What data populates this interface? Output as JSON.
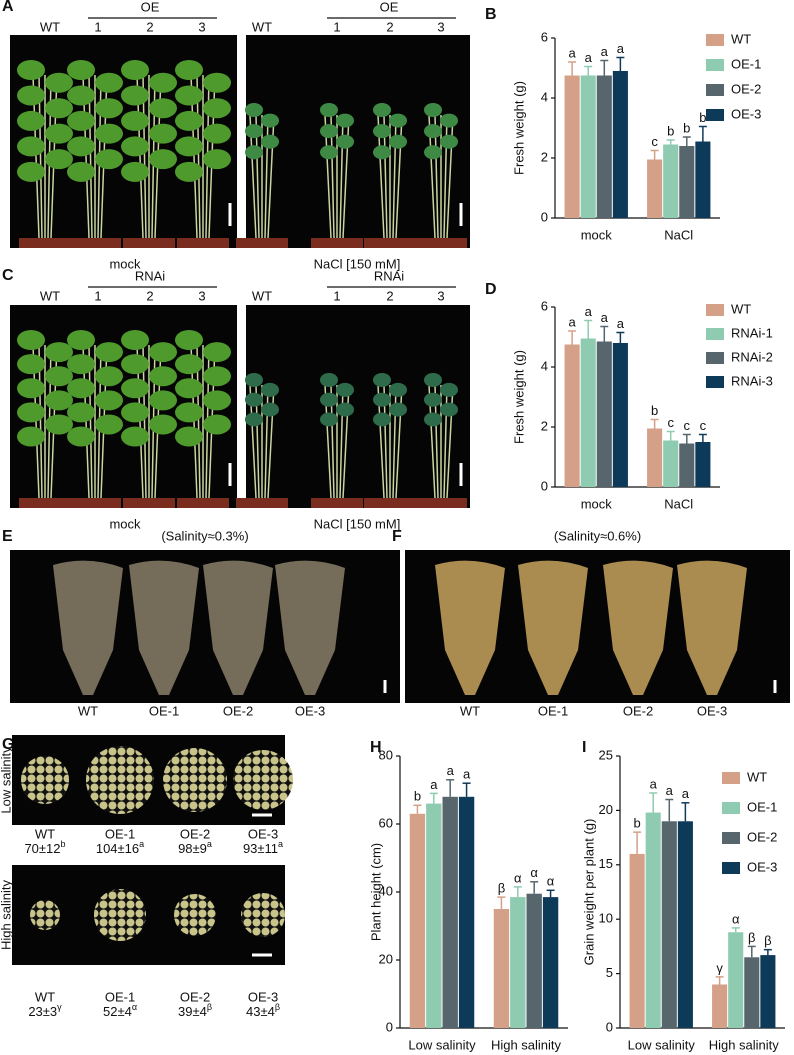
{
  "panels": {
    "A": {
      "letter": "A",
      "mock": {
        "wt": "WT",
        "group": "OE",
        "lines": [
          "1",
          "2",
          "3"
        ],
        "caption": "mock"
      },
      "salt": {
        "wt": "WT",
        "group": "OE",
        "lines": [
          "1",
          "2",
          "3"
        ],
        "caption": "NaCl [150 mM]"
      }
    },
    "C": {
      "letter": "C",
      "mock": {
        "wt": "WT",
        "group": "RNAi",
        "lines": [
          "1",
          "2",
          "3"
        ],
        "caption": "mock"
      },
      "salt": {
        "wt": "WT",
        "group": "RNAi",
        "lines": [
          "1",
          "2",
          "3"
        ],
        "caption": "NaCl [150 mM]"
      }
    },
    "E": {
      "letter": "E",
      "title": "(Salinity≈0.3%)",
      "labels": [
        "WT",
        "OE-1",
        "OE-2",
        "OE-3"
      ]
    },
    "F": {
      "letter": "F",
      "title": "(Salinity≈0.6%)",
      "labels": [
        "WT",
        "OE-1",
        "OE-2",
        "OE-3"
      ]
    },
    "G": {
      "letter": "G",
      "low": {
        "label": "Low salinity",
        "rows": [
          {
            "name": "WT",
            "count": "70±12",
            "letter": "b"
          },
          {
            "name": "OE-1",
            "count": "104±16",
            "letter": "a"
          },
          {
            "name": "OE-2",
            "count": "98±9",
            "letter": "a"
          },
          {
            "name": "OE-3",
            "count": "93±11",
            "letter": "a"
          }
        ]
      },
      "high": {
        "label": "High salinity",
        "rows": [
          {
            "name": "WT",
            "count": "23±3",
            "letter": "γ"
          },
          {
            "name": "OE-1",
            "count": "52±4",
            "letter": "α"
          },
          {
            "name": "OE-2",
            "count": "39±4",
            "letter": "β"
          },
          {
            "name": "OE-3",
            "count": "43±4",
            "letter": "β"
          }
        ]
      }
    }
  },
  "chart_data": [
    {
      "type": "bar",
      "panel": "B",
      "y_label": "Fresh weight (g)",
      "categories": [
        "mock",
        "NaCl"
      ],
      "ylim": [
        0,
        6
      ],
      "yticks": [
        0,
        2,
        4,
        6
      ],
      "legend": true,
      "series": [
        {
          "name": "WT",
          "color": "#d4a088",
          "values": [
            4.75,
            1.95
          ],
          "errors": [
            0.45,
            0.3
          ],
          "labels": [
            "a",
            "c"
          ]
        },
        {
          "name": "OE-1",
          "color": "#8ecbb0",
          "values": [
            4.75,
            2.45
          ],
          "errors": [
            0.3,
            0.15
          ],
          "labels": [
            "a",
            "b"
          ]
        },
        {
          "name": "OE-2",
          "color": "#56666c",
          "values": [
            4.75,
            2.4
          ],
          "errors": [
            0.5,
            0.3
          ],
          "labels": [
            "a",
            "b"
          ]
        },
        {
          "name": "OE-3",
          "color": "#0e3a5a",
          "values": [
            4.9,
            2.55
          ],
          "errors": [
            0.45,
            0.5
          ],
          "labels": [
            "a",
            "b"
          ]
        }
      ]
    },
    {
      "type": "bar",
      "panel": "D",
      "y_label": "Fresh weight (g)",
      "categories": [
        "mock",
        "NaCl"
      ],
      "ylim": [
        0,
        6
      ],
      "yticks": [
        0,
        2,
        4,
        6
      ],
      "legend": true,
      "series": [
        {
          "name": "WT",
          "color": "#d4a088",
          "values": [
            4.75,
            1.95
          ],
          "errors": [
            0.45,
            0.3
          ],
          "labels": [
            "a",
            "b"
          ]
        },
        {
          "name": "RNAi-1",
          "color": "#8ecbb0",
          "values": [
            4.95,
            1.55
          ],
          "errors": [
            0.6,
            0.3
          ],
          "labels": [
            "a",
            "c"
          ]
        },
        {
          "name": "RNAi-2",
          "color": "#56666c",
          "values": [
            4.85,
            1.45
          ],
          "errors": [
            0.5,
            0.3
          ],
          "labels": [
            "a",
            "c"
          ]
        },
        {
          "name": "RNAi-3",
          "color": "#0e3a5a",
          "values": [
            4.8,
            1.5
          ],
          "errors": [
            0.35,
            0.25
          ],
          "labels": [
            "a",
            "c"
          ]
        }
      ]
    },
    {
      "type": "bar",
      "panel": "H",
      "y_label": "Plant height (cm)",
      "categories": [
        "Low salinity",
        "High salinity"
      ],
      "ylim": [
        0,
        80
      ],
      "yticks": [
        0,
        20,
        40,
        60,
        80
      ],
      "legend": false,
      "series": [
        {
          "color": "#d4a088",
          "values": [
            63,
            35
          ],
          "errors": [
            2.5,
            3.5
          ],
          "labels": [
            "b",
            "β"
          ]
        },
        {
          "color": "#8ecbb0",
          "values": [
            66,
            38.5
          ],
          "errors": [
            3,
            3
          ],
          "labels": [
            "a",
            "α"
          ]
        },
        {
          "color": "#56666c",
          "values": [
            68,
            39.5
          ],
          "errors": [
            5,
            3.5
          ],
          "labels": [
            "a",
            "α"
          ]
        },
        {
          "color": "#0e3a5a",
          "values": [
            68,
            38.5
          ],
          "errors": [
            4,
            2
          ],
          "labels": [
            "a",
            "α"
          ]
        }
      ]
    },
    {
      "type": "bar",
      "panel": "I",
      "y_label": "Grain weight per plant (g)",
      "categories": [
        "Low salinity",
        "High salinity"
      ],
      "ylim": [
        0,
        25
      ],
      "yticks": [
        0,
        5,
        10,
        15,
        20,
        25
      ],
      "legend": true,
      "series": [
        {
          "name": "WT",
          "color": "#d4a088",
          "values": [
            16,
            4
          ],
          "errors": [
            2,
            0.7
          ],
          "labels": [
            "b",
            "γ"
          ]
        },
        {
          "name": "OE-1",
          "color": "#8ecbb0",
          "values": [
            19.8,
            8.8
          ],
          "errors": [
            1.8,
            0.4
          ],
          "labels": [
            "a",
            "α"
          ]
        },
        {
          "name": "OE-2",
          "color": "#56666c",
          "values": [
            19,
            6.5
          ],
          "errors": [
            2,
            1
          ],
          "labels": [
            "a",
            "β"
          ]
        },
        {
          "name": "OE-3",
          "color": "#0e3a5a",
          "values": [
            19,
            6.7
          ],
          "errors": [
            1.7,
            0.5
          ],
          "labels": [
            "a",
            "β"
          ]
        }
      ]
    }
  ]
}
